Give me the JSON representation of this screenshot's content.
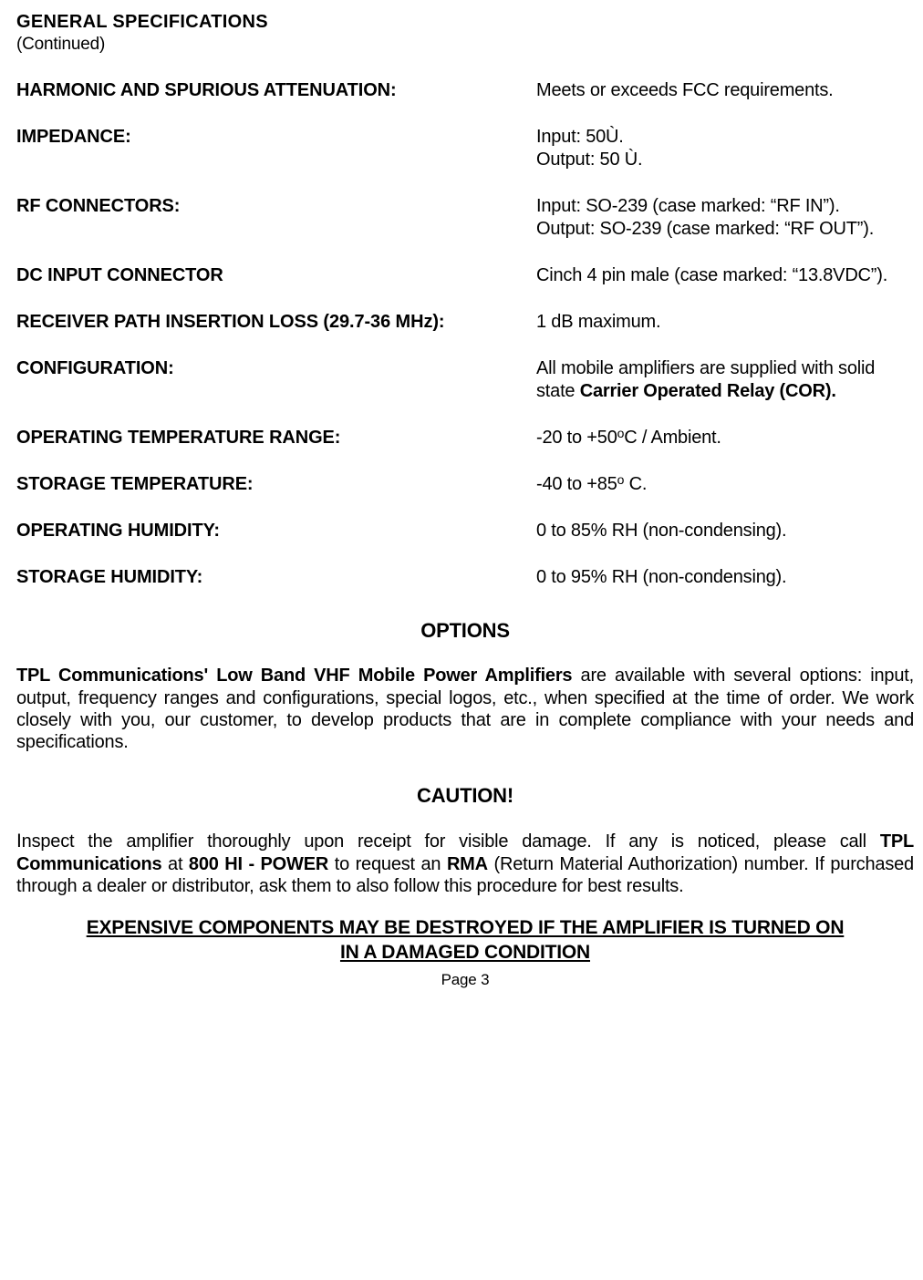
{
  "header": {
    "title": "GENERAL SPECIFICATIONS",
    "subtitle": "(Continued)"
  },
  "specs": [
    {
      "label": "HARMONIC AND SPURIOUS ATTENUATION:",
      "value": "Meets or exceeds FCC requirements."
    },
    {
      "label": "IMPEDANCE:",
      "value": "Input: 50Ù.\nOutput: 50 Ù."
    },
    {
      "label": "RF CONNECTORS:",
      "value": "Input:  SO-239 (case marked: \"RF IN\").\nOutput:  SO-239 (case marked: \"RF OUT\")."
    },
    {
      "label": "DC INPUT CONNECTOR",
      "value": "Cinch 4 pin male (case marked: \"13.8VDC\")."
    },
    {
      "label": "RECEIVER PATH INSERTION LOSS (29.7-36 MHz):",
      "value": "1 dB maximum."
    },
    {
      "label": "CONFIGURATION:",
      "value_html": "All mobile amplifiers are supplied with solid state <b>Carrier Operated Relay (COR).</b>"
    },
    {
      "label": "OPERATING TEMPERATURE RANGE:",
      "value_html": "-20 to +50<span class=\"sup\">o</span>C / Ambient."
    },
    {
      "label": "STORAGE TEMPERATURE:",
      "value_html": "-40 to +85<span class=\"sup\">o</span> C."
    },
    {
      "label": "OPERATING HUMIDITY:",
      "value": "0 to 85% RH (non-condensing)."
    },
    {
      "label": "STORAGE HUMIDITY:",
      "value": "0 to 95% RH (non-condensing)."
    }
  ],
  "options": {
    "heading": "OPTIONS",
    "para_html": "<b>TPL Communications' Low Band VHF Mobile Power Amplifiers</b> are available with several options: input, output, frequency ranges and configurations, special logos, etc., when specified at the time of order. We work closely with you, our customer, to develop products that are in complete compliance with your needs and specifications."
  },
  "caution": {
    "heading": "CAUTION!",
    "para_html": "<span style=\"font-size:21px\">I</span>nspect the amplifier thoroughly upon receipt for visible damage. If any is noticed, please call <b>TPL Communications</b> at <b>800 HI - POWER</b> to request an <b>RMA</b> (Return Material Authorization) number. If purchased through a dealer or distributor, ask them to also follow this procedure for best results."
  },
  "warn": {
    "line1": "EXPENSIVE COMPONENTS MAY BE DESTROYED IF THE AMPLIFIER IS TURNED ON",
    "line2": "IN A DAMAGED CONDITION"
  },
  "page": "Page 3"
}
